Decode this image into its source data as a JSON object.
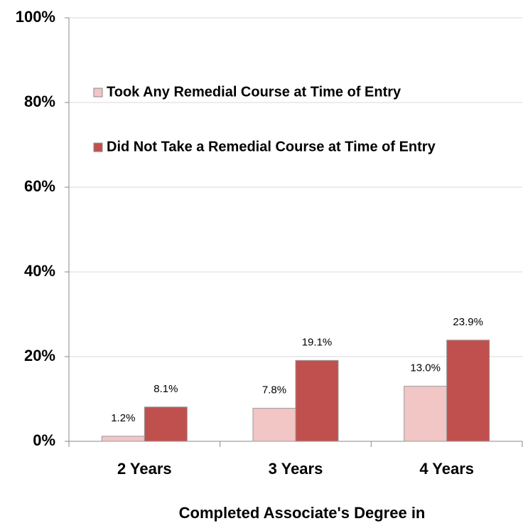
{
  "chart_data": {
    "type": "bar",
    "x_label": "Completed Associate's Degree in",
    "categories": [
      "2 Years",
      "3 Years",
      "4 Years"
    ],
    "series": [
      {
        "name": "Took Any Remedial Course at Time of Entry",
        "color": "#f2c6c5",
        "values": [
          1.2,
          7.8,
          13.0
        ],
        "value_labels": [
          "1.2%",
          "7.8%",
          "13.0%"
        ]
      },
      {
        "name": "Did Not Take a Remedial Course at Time of Entry",
        "color": "#c0504d",
        "values": [
          8.1,
          19.1,
          23.9
        ],
        "value_labels": [
          "8.1%",
          "19.1%",
          "23.9%"
        ]
      }
    ],
    "ylim": [
      0,
      100
    ],
    "yticks": [
      {
        "value": 0,
        "label": "0%"
      },
      {
        "value": 20,
        "label": "20%"
      },
      {
        "value": 40,
        "label": "40%"
      },
      {
        "value": 60,
        "label": "60%"
      },
      {
        "value": 80,
        "label": "80%"
      },
      {
        "value": 100,
        "label": "100%"
      }
    ],
    "grid": true,
    "legend": "upper left"
  }
}
